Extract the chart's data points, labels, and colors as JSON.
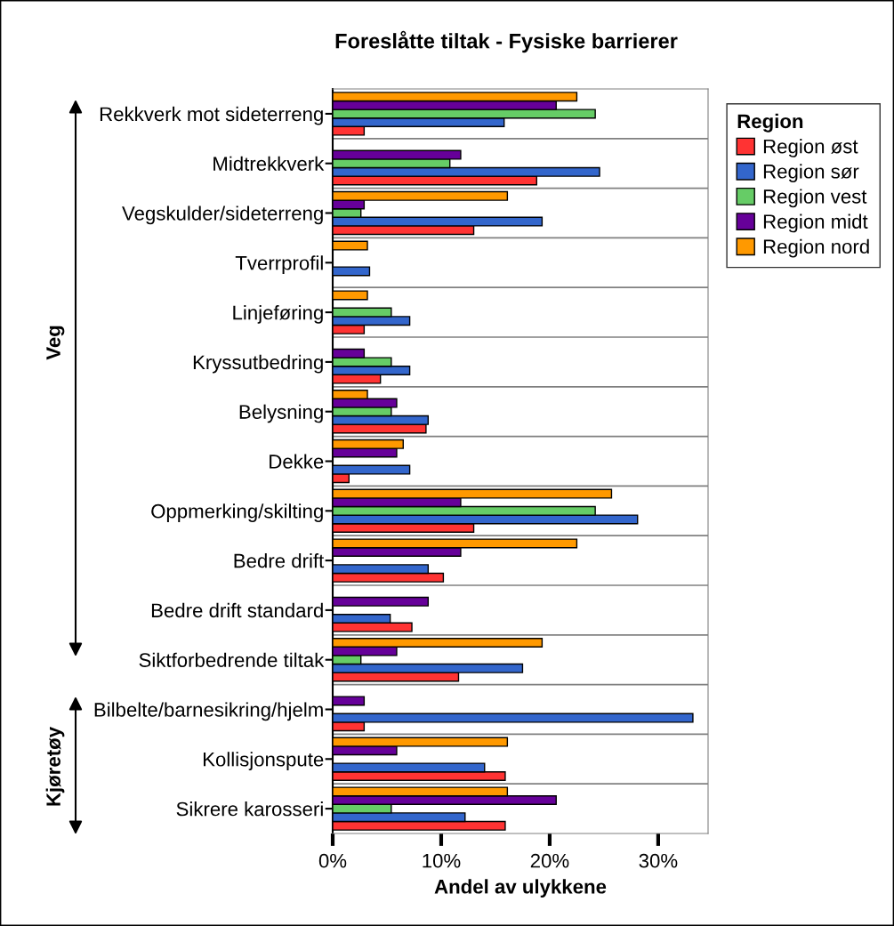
{
  "chart_data": {
    "type": "bar",
    "orientation": "horizontal",
    "title": "Foreslåtte tiltak - Fysiske barrierer",
    "xlabel": "Andel av ulykkene",
    "legend_title": "Region",
    "categories": [
      "Rekkverk mot sideterreng",
      "Midtrekkverk",
      "Vegskulder/sideterreng",
      "Tverrprofil",
      "Linjeføring",
      "Kryssutbedring",
      "Belysning",
      "Dekke",
      "Oppmerking/skilting",
      "Bedre drift",
      "Bedre drift standard",
      "Siktforbedrende tiltak",
      "Bilbelte/barnesikring/hjelm",
      "Kollisjonspute",
      "Sikrere karosseri"
    ],
    "series": [
      {
        "name": "Region øst",
        "color": "#ff3333",
        "values": [
          2.9,
          18.8,
          13.0,
          null,
          2.9,
          4.4,
          8.6,
          1.5,
          13.0,
          10.2,
          7.3,
          11.6,
          2.9,
          15.9,
          15.9
        ]
      },
      {
        "name": "Region sør",
        "color": "#3366cc",
        "values": [
          15.8,
          24.6,
          19.3,
          3.4,
          7.1,
          7.1,
          8.8,
          7.1,
          28.1,
          8.8,
          5.3,
          17.5,
          33.2,
          14.0,
          12.2
        ]
      },
      {
        "name": "Region vest",
        "color": "#66cc66",
        "values": [
          24.2,
          10.8,
          2.6,
          null,
          5.4,
          5.4,
          5.4,
          null,
          24.2,
          null,
          null,
          2.6,
          null,
          null,
          5.4
        ]
      },
      {
        "name": "Region midt",
        "color": "#660099",
        "values": [
          20.6,
          11.8,
          2.9,
          null,
          null,
          2.9,
          5.9,
          5.9,
          11.8,
          11.8,
          8.8,
          5.9,
          2.9,
          5.9,
          20.6
        ]
      },
      {
        "name": "Region nord",
        "color": "#ff9900",
        "values": [
          22.5,
          null,
          16.1,
          3.2,
          3.2,
          null,
          3.2,
          6.5,
          25.7,
          22.5,
          null,
          19.3,
          null,
          16.1,
          16.1
        ]
      }
    ],
    "xlim": [
      0,
      34.6
    ],
    "xticks": [
      {
        "value": 0,
        "label": "0%"
      },
      {
        "value": 10,
        "label": "10%"
      },
      {
        "value": 20,
        "label": "20%"
      },
      {
        "value": 30,
        "label": "30%"
      }
    ],
    "grid": "y",
    "legend": "top right",
    "annotations": [
      "Veg",
      "Kjøretøy"
    ]
  }
}
